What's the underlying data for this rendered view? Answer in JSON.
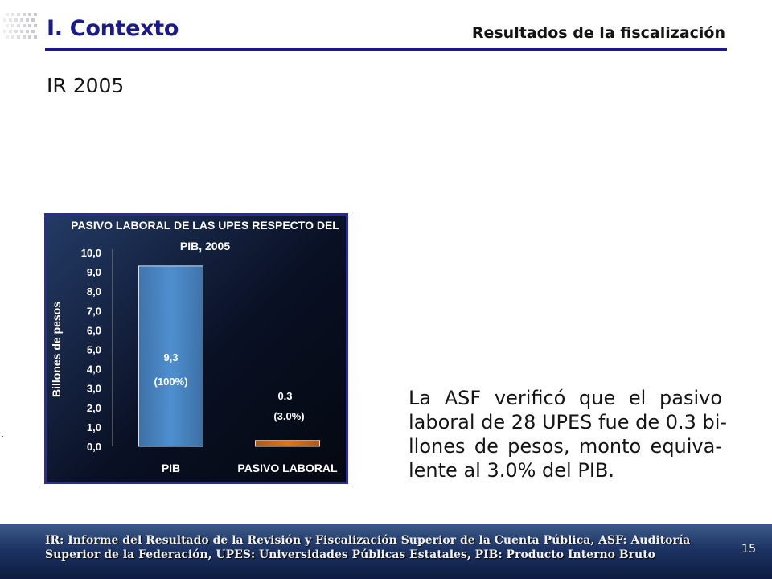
{
  "header": {
    "title": "I. Contexto",
    "section": "Resultados de la fiscalización",
    "subtitle": "IR 2005"
  },
  "chart_data": {
    "type": "bar",
    "title_line1": "PASIVO LABORAL DE LAS UPES RESPECTO DEL",
    "title_line2": "PIB, 2005",
    "ylabel": "Billones de pesos",
    "ylim": [
      0,
      10
    ],
    "ytick_values": [
      0,
      1,
      2,
      3,
      4,
      5,
      6,
      7,
      8,
      9,
      10
    ],
    "ytick_labels": [
      "0,0",
      "1,0",
      "2,0",
      "3,0",
      "4,0",
      "5,0",
      "6,0",
      "7,0",
      "8,0",
      "9,0",
      "10,0"
    ],
    "categories": [
      "PIB",
      "PASIVO LABORAL"
    ],
    "values": [
      9.3,
      0.3
    ],
    "value_labels": [
      "9,3",
      "0.3"
    ],
    "percent_labels": [
      "(100%)",
      "(3.0%)"
    ],
    "bar_colors": [
      "#4f8fd0",
      "#e0741c"
    ],
    "grid": false,
    "legend": "none"
  },
  "body": {
    "lines": [
      "La ASF verificó que el pasivo",
      "laboral de 28 UPES fue de 0.3 bi-",
      "llones de pesos, monto equiva-",
      "lente al 3.0% del PIB."
    ]
  },
  "footer": {
    "line1": "IR: Informe del Resultado de la Revisión y Fiscalización Superior de la Cuenta Pública, ASF: Auditoría",
    "line2": "Superior de la Federación, UPES: Universidades Públicas Estatales, PIB: Producto Interno Bruto",
    "page_number": "15"
  }
}
